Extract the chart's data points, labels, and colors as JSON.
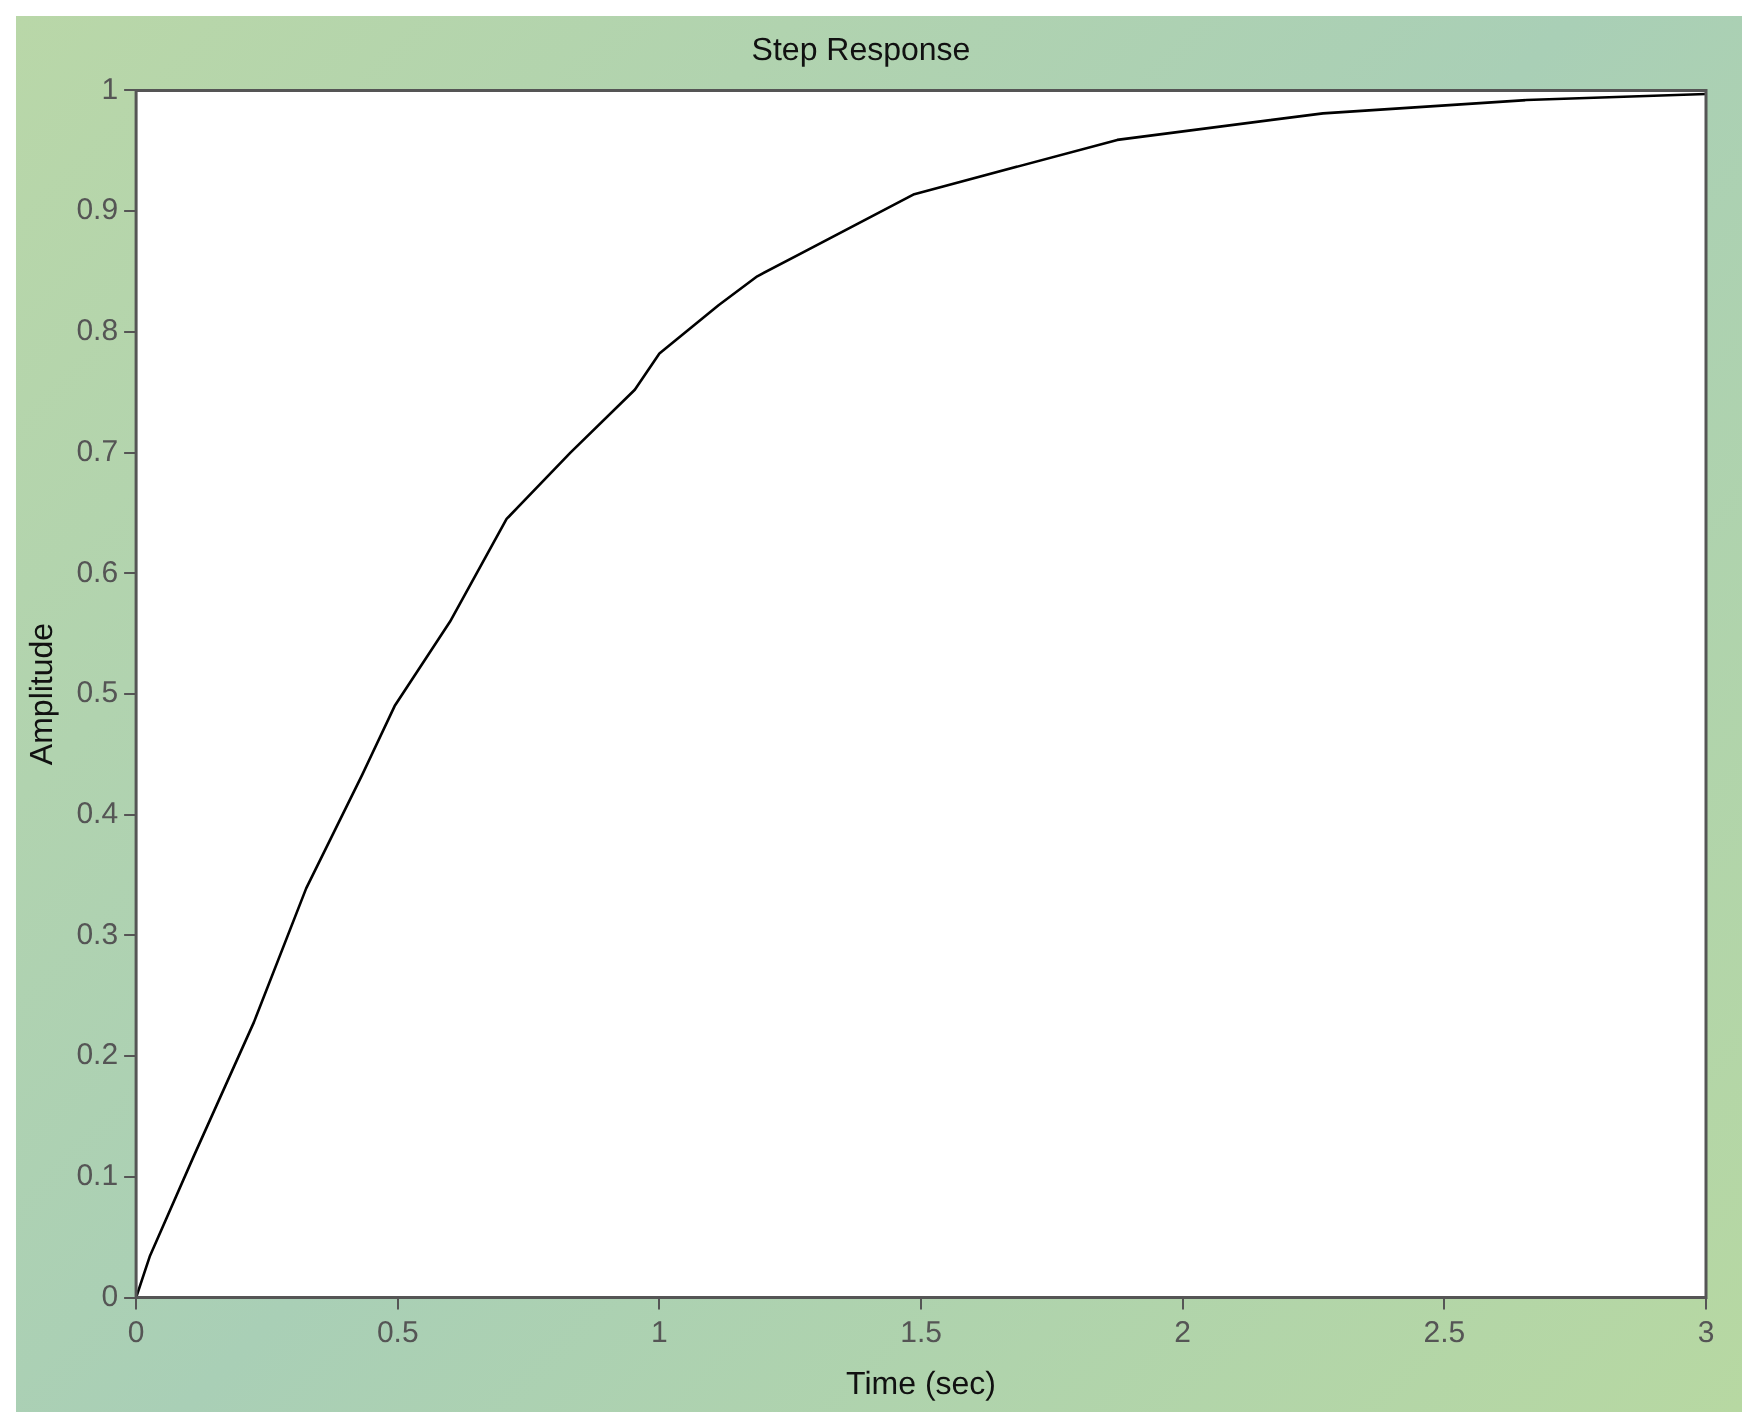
{
  "chart_data": {
    "type": "line",
    "title": "Step Response",
    "xlabel": "Time (sec)",
    "ylabel": "Amplitude",
    "series": [
      {
        "color": "#000000",
        "x": [
          0,
          0.026,
          0.11,
          0.225,
          0.325,
          0.432,
          0.494,
          0.6,
          0.708,
          0.83,
          0.953,
          1.0,
          1.113,
          1.187,
          1.487,
          1.875,
          2.268,
          2.657,
          3.0
        ],
        "values": [
          0,
          0.034,
          0.117,
          0.228,
          0.339,
          0.433,
          0.49,
          0.56,
          0.645,
          0.7,
          0.752,
          0.782,
          0.822,
          0.846,
          0.914,
          0.959,
          0.981,
          0.992,
          0.997
        ]
      }
    ],
    "xlim": [
      0,
      3
    ],
    "xticks": [
      0,
      0.5,
      1,
      1.5,
      2,
      2.5,
      3
    ],
    "ylim": [
      0,
      1
    ],
    "yticks": [
      0,
      0.1,
      0.2,
      0.3,
      0.4,
      0.5,
      0.6,
      0.7,
      0.8,
      0.9,
      1
    ],
    "grid": false,
    "legend": false,
    "marker": "none",
    "line_style": "solid"
  }
}
